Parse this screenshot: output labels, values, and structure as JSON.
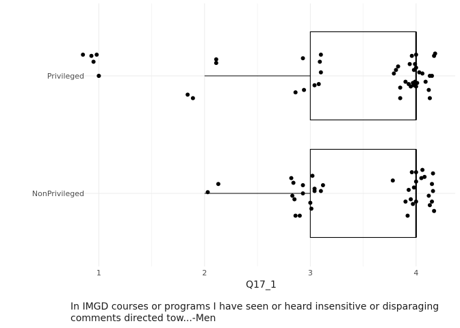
{
  "chart_data": {
    "type": "boxplot",
    "orientation": "horizontal",
    "title": "",
    "xlabel": "Q17_1",
    "ylabel": "",
    "xlim": [
      0.7,
      4.37
    ],
    "x_ticks": [
      1,
      2,
      3,
      4
    ],
    "x_tick_labels": [
      "1",
      "2",
      "3",
      "4"
    ],
    "categories": [
      "Privileged",
      "NonPrivileged"
    ],
    "grid": true,
    "caption": "In IMGD courses or programs I have seen or heard insensitive or disparaging comments directed tow...-Men",
    "boxes": [
      {
        "category": "Privileged",
        "q1": 3.0,
        "median": 4.0,
        "q3": 4.0,
        "whisker_low": 2.0,
        "whisker_high": 4.0
      },
      {
        "category": "NonPrivileged",
        "q1": 3.0,
        "median": 4.0,
        "q3": 4.0,
        "whisker_low": 2.0,
        "whisker_high": 4.0
      }
    ],
    "points": [
      {
        "category": "Privileged",
        "x": 0.85,
        "jitter": 0.18
      },
      {
        "category": "Privileged",
        "x": 0.93,
        "jitter": 0.17
      },
      {
        "category": "Privileged",
        "x": 0.98,
        "jitter": 0.18
      },
      {
        "category": "Privileged",
        "x": 0.95,
        "jitter": 0.12
      },
      {
        "category": "Privileged",
        "x": 1.0,
        "jitter": 0.0
      },
      {
        "category": "Privileged",
        "x": 1.0,
        "jitter": 0.0
      },
      {
        "category": "Privileged",
        "x": 1.84,
        "jitter": -0.16
      },
      {
        "category": "Privileged",
        "x": 1.89,
        "jitter": -0.19
      },
      {
        "category": "Privileged",
        "x": 2.11,
        "jitter": 0.14
      },
      {
        "category": "Privileged",
        "x": 2.11,
        "jitter": 0.11
      },
      {
        "category": "Privileged",
        "x": 2.93,
        "jitter": 0.15
      },
      {
        "category": "Privileged",
        "x": 2.86,
        "jitter": -0.14
      },
      {
        "category": "Privileged",
        "x": 2.94,
        "jitter": -0.12
      },
      {
        "category": "Privileged",
        "x": 3.04,
        "jitter": -0.08
      },
      {
        "category": "Privileged",
        "x": 3.08,
        "jitter": -0.07
      },
      {
        "category": "Privileged",
        "x": 3.1,
        "jitter": 0.18
      },
      {
        "category": "Privileged",
        "x": 3.09,
        "jitter": 0.12
      },
      {
        "category": "Privileged",
        "x": 3.1,
        "jitter": 0.03
      },
      {
        "category": "Privileged",
        "x": 3.85,
        "jitter": -0.19
      },
      {
        "category": "Privileged",
        "x": 3.79,
        "jitter": 0.02
      },
      {
        "category": "Privileged",
        "x": 3.81,
        "jitter": 0.05
      },
      {
        "category": "Privileged",
        "x": 3.83,
        "jitter": 0.08
      },
      {
        "category": "Privileged",
        "x": 3.85,
        "jitter": -0.1
      },
      {
        "category": "Privileged",
        "x": 3.9,
        "jitter": -0.05
      },
      {
        "category": "Privileged",
        "x": 3.93,
        "jitter": -0.07
      },
      {
        "category": "Privileged",
        "x": 3.94,
        "jitter": 0.1
      },
      {
        "category": "Privileged",
        "x": 3.95,
        "jitter": -0.09
      },
      {
        "category": "Privileged",
        "x": 3.96,
        "jitter": 0.17
      },
      {
        "category": "Privileged",
        "x": 3.97,
        "jitter": -0.06
      },
      {
        "category": "Privileged",
        "x": 3.98,
        "jitter": -0.08
      },
      {
        "category": "Privileged",
        "x": 3.99,
        "jitter": -0.05
      },
      {
        "category": "Privileged",
        "x": 4.0,
        "jitter": 0.18
      },
      {
        "category": "Privileged",
        "x": 4.0,
        "jitter": 0.07
      },
      {
        "category": "Privileged",
        "x": 4.0,
        "jitter": -0.09
      },
      {
        "category": "Privileged",
        "x": 3.99,
        "jitter": 0.1
      },
      {
        "category": "Privileged",
        "x": 4.01,
        "jitter": -0.06
      },
      {
        "category": "Privileged",
        "x": 3.98,
        "jitter": 0.05
      },
      {
        "category": "Privileged",
        "x": 4.03,
        "jitter": 0.03
      },
      {
        "category": "Privileged",
        "x": 4.06,
        "jitter": 0.02
      },
      {
        "category": "Privileged",
        "x": 4.09,
        "jitter": -0.05
      },
      {
        "category": "Privileged",
        "x": 4.12,
        "jitter": -0.12
      },
      {
        "category": "Privileged",
        "x": 4.13,
        "jitter": -0.19
      },
      {
        "category": "Privileged",
        "x": 4.13,
        "jitter": 0.0
      },
      {
        "category": "Privileged",
        "x": 4.15,
        "jitter": -0.0
      },
      {
        "category": "Privileged",
        "x": 4.17,
        "jitter": 0.17
      },
      {
        "category": "Privileged",
        "x": 4.18,
        "jitter": 0.19
      },
      {
        "category": "NonPrivileged",
        "x": 2.03,
        "jitter": 0.01
      },
      {
        "category": "NonPrivileged",
        "x": 2.13,
        "jitter": 0.08
      },
      {
        "category": "NonPrivileged",
        "x": 2.82,
        "jitter": 0.13
      },
      {
        "category": "NonPrivileged",
        "x": 2.83,
        "jitter": -0.02
      },
      {
        "category": "NonPrivileged",
        "x": 2.84,
        "jitter": 0.09
      },
      {
        "category": "NonPrivileged",
        "x": 2.85,
        "jitter": -0.05
      },
      {
        "category": "NonPrivileged",
        "x": 2.86,
        "jitter": -0.19
      },
      {
        "category": "NonPrivileged",
        "x": 2.9,
        "jitter": -0.19
      },
      {
        "category": "NonPrivileged",
        "x": 2.93,
        "jitter": 0.07
      },
      {
        "category": "NonPrivileged",
        "x": 2.93,
        "jitter": -0.0
      },
      {
        "category": "NonPrivileged",
        "x": 3.0,
        "jitter": -0.08
      },
      {
        "category": "NonPrivileged",
        "x": 3.01,
        "jitter": -0.13
      },
      {
        "category": "NonPrivileged",
        "x": 3.02,
        "jitter": 0.15
      },
      {
        "category": "NonPrivileged",
        "x": 3.04,
        "jitter": 0.04
      },
      {
        "category": "NonPrivileged",
        "x": 3.04,
        "jitter": 0.02
      },
      {
        "category": "NonPrivileged",
        "x": 3.1,
        "jitter": 0.02
      },
      {
        "category": "NonPrivileged",
        "x": 3.12,
        "jitter": 0.07
      },
      {
        "category": "NonPrivileged",
        "x": 3.78,
        "jitter": 0.11
      },
      {
        "category": "NonPrivileged",
        "x": 3.9,
        "jitter": -0.07
      },
      {
        "category": "NonPrivileged",
        "x": 3.92,
        "jitter": -0.19
      },
      {
        "category": "NonPrivileged",
        "x": 3.93,
        "jitter": 0.03
      },
      {
        "category": "NonPrivileged",
        "x": 3.95,
        "jitter": -0.05
      },
      {
        "category": "NonPrivileged",
        "x": 3.96,
        "jitter": 0.18
      },
      {
        "category": "NonPrivileged",
        "x": 3.97,
        "jitter": -0.09
      },
      {
        "category": "NonPrivileged",
        "x": 3.98,
        "jitter": 0.05
      },
      {
        "category": "NonPrivileged",
        "x": 4.0,
        "jitter": 0.18
      },
      {
        "category": "NonPrivileged",
        "x": 4.0,
        "jitter": 0.1
      },
      {
        "category": "NonPrivileged",
        "x": 4.0,
        "jitter": -0.07
      },
      {
        "category": "NonPrivileged",
        "x": 4.05,
        "jitter": 0.13
      },
      {
        "category": "NonPrivileged",
        "x": 4.06,
        "jitter": 0.2
      },
      {
        "category": "NonPrivileged",
        "x": 4.08,
        "jitter": 0.14
      },
      {
        "category": "NonPrivileged",
        "x": 4.12,
        "jitter": -0.02
      },
      {
        "category": "NonPrivileged",
        "x": 4.13,
        "jitter": -0.1
      },
      {
        "category": "NonPrivileged",
        "x": 4.15,
        "jitter": -0.07
      },
      {
        "category": "NonPrivileged",
        "x": 4.15,
        "jitter": 0.08
      },
      {
        "category": "NonPrivileged",
        "x": 4.16,
        "jitter": 0.02
      },
      {
        "category": "NonPrivileged",
        "x": 4.16,
        "jitter": 0.17
      },
      {
        "category": "NonPrivileged",
        "x": 4.17,
        "jitter": -0.15
      }
    ]
  },
  "colors": {
    "point": "#000000",
    "box_stroke": "#000000",
    "gridline": "#ebebeb",
    "tick_label": "#4d4d4d"
  }
}
